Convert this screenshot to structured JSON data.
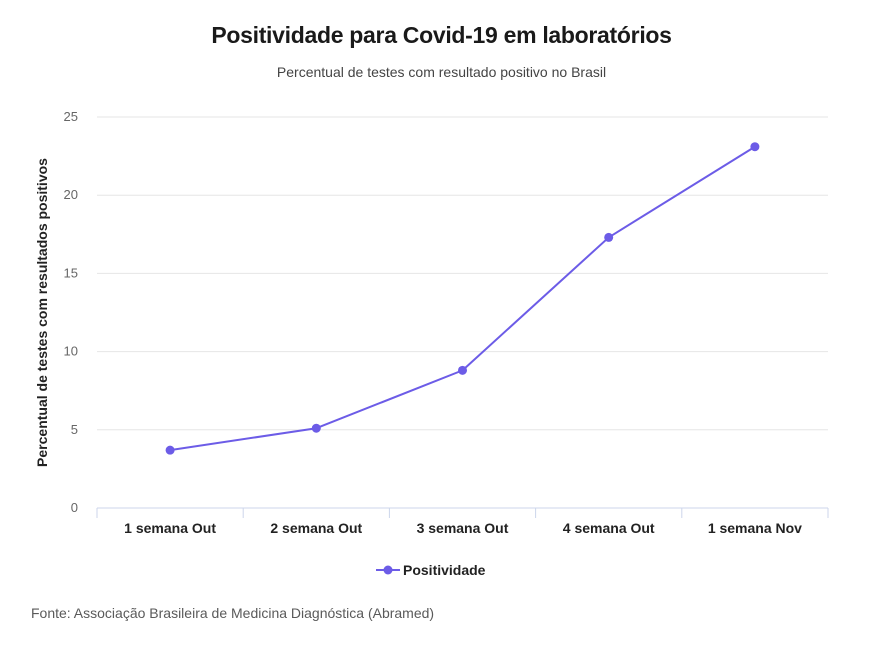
{
  "header": {
    "title": "Positividade para Covid-19 em laboratórios",
    "subtitle": "Percentual de testes com resultado positivo no Brasil"
  },
  "footer": {
    "source": "Fonte: Associação Brasileira de Medicina Diagnóstica (Abramed)"
  },
  "chart_data": {
    "type": "line",
    "title": "Positividade para Covid-19 em laboratórios",
    "subtitle": "Percentual de testes com resultado positivo no Brasil",
    "xlabel": "",
    "ylabel": "Percentual de testes com resultados positivos",
    "categories": [
      "1 semana Out",
      "2 semana Out",
      "3 semana Out",
      "4 semana Out",
      "1 semana Nov"
    ],
    "series": [
      {
        "name": "Positividade",
        "values": [
          3.7,
          5.1,
          8.8,
          17.3,
          23.1
        ]
      }
    ],
    "ylim": [
      0,
      25
    ],
    "yticks": [
      0,
      5,
      10,
      15,
      20,
      25
    ],
    "grid": true,
    "legend": "bottom-center",
    "colors": {
      "line": "#6c5ce7",
      "grid": "#e6e6e6",
      "axis": "#ccd6eb"
    }
  }
}
